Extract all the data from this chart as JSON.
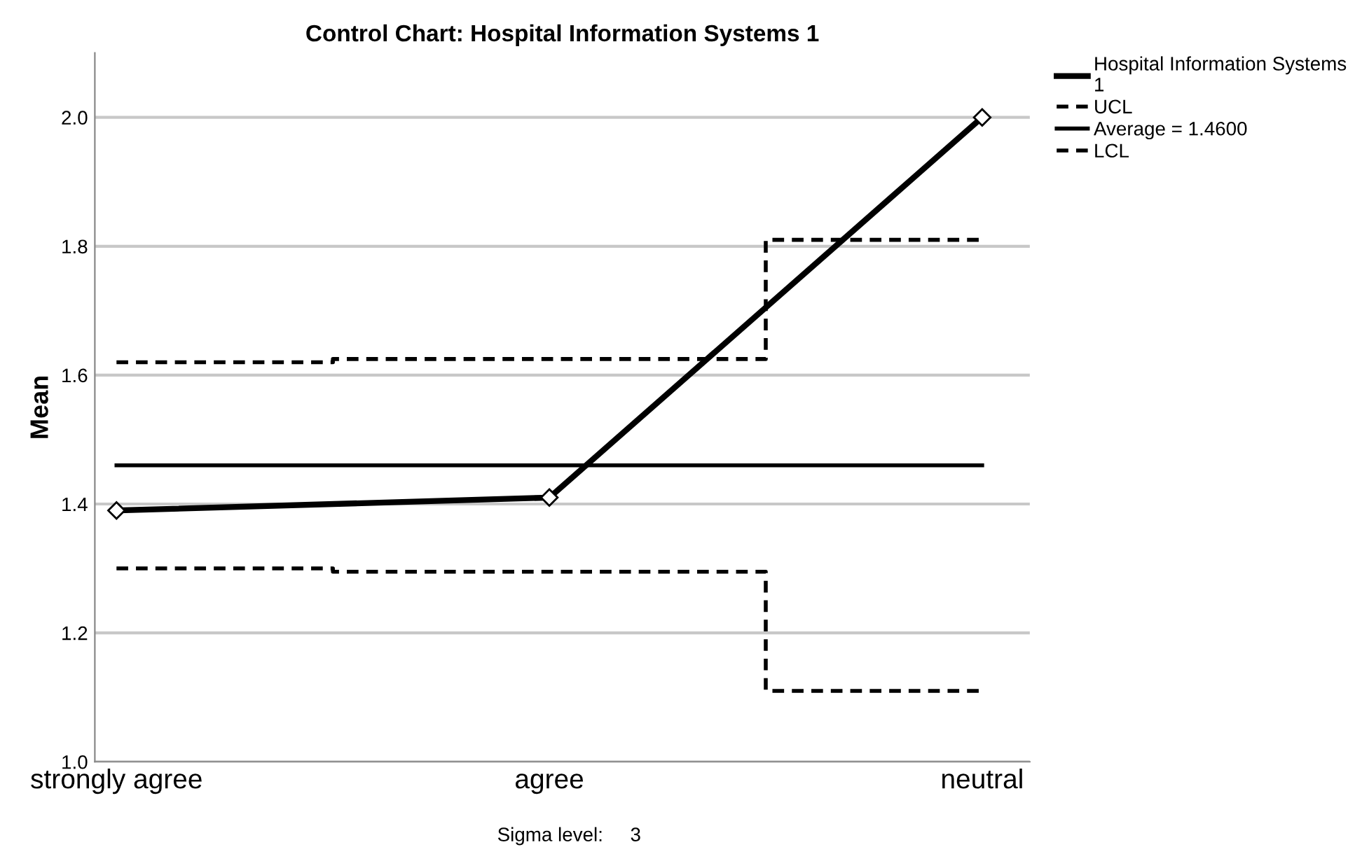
{
  "chart_data": {
    "type": "line",
    "title": "Control Chart: Hospital Information Systems 1",
    "ylabel": "Mean",
    "categories": [
      "strongly agree",
      "agree",
      "neutral"
    ],
    "series": [
      {
        "name": "Hospital Information Systems 1",
        "color": "#000000",
        "values": [
          1.39,
          1.41,
          2.0
        ],
        "marker": "diamond",
        "line_style": "solid"
      },
      {
        "name": "UCL",
        "color": "#000000",
        "type": "step",
        "values": [
          1.62,
          1.625,
          1.81
        ],
        "marker": "none",
        "line_style": "dashed"
      },
      {
        "name": "Average = 1.4600",
        "color": "#000000",
        "values": [
          1.46,
          1.46,
          1.46
        ],
        "marker": "none",
        "line_style": "solid"
      },
      {
        "name": "LCL",
        "color": "#000000",
        "type": "step",
        "values": [
          1.3,
          1.295,
          1.11
        ],
        "marker": "none",
        "line_style": "dashed"
      }
    ],
    "ylim": [
      1.0,
      2.1
    ],
    "yticks": [
      {
        "value": 1.0,
        "label": "1.0"
      },
      1.2,
      1.4,
      1.6,
      1.8,
      {
        "value": 2.0,
        "label": "2.0"
      }
    ],
    "grid": "y",
    "legend": "top right",
    "annotations": [
      "Sigma level:     3"
    ]
  }
}
